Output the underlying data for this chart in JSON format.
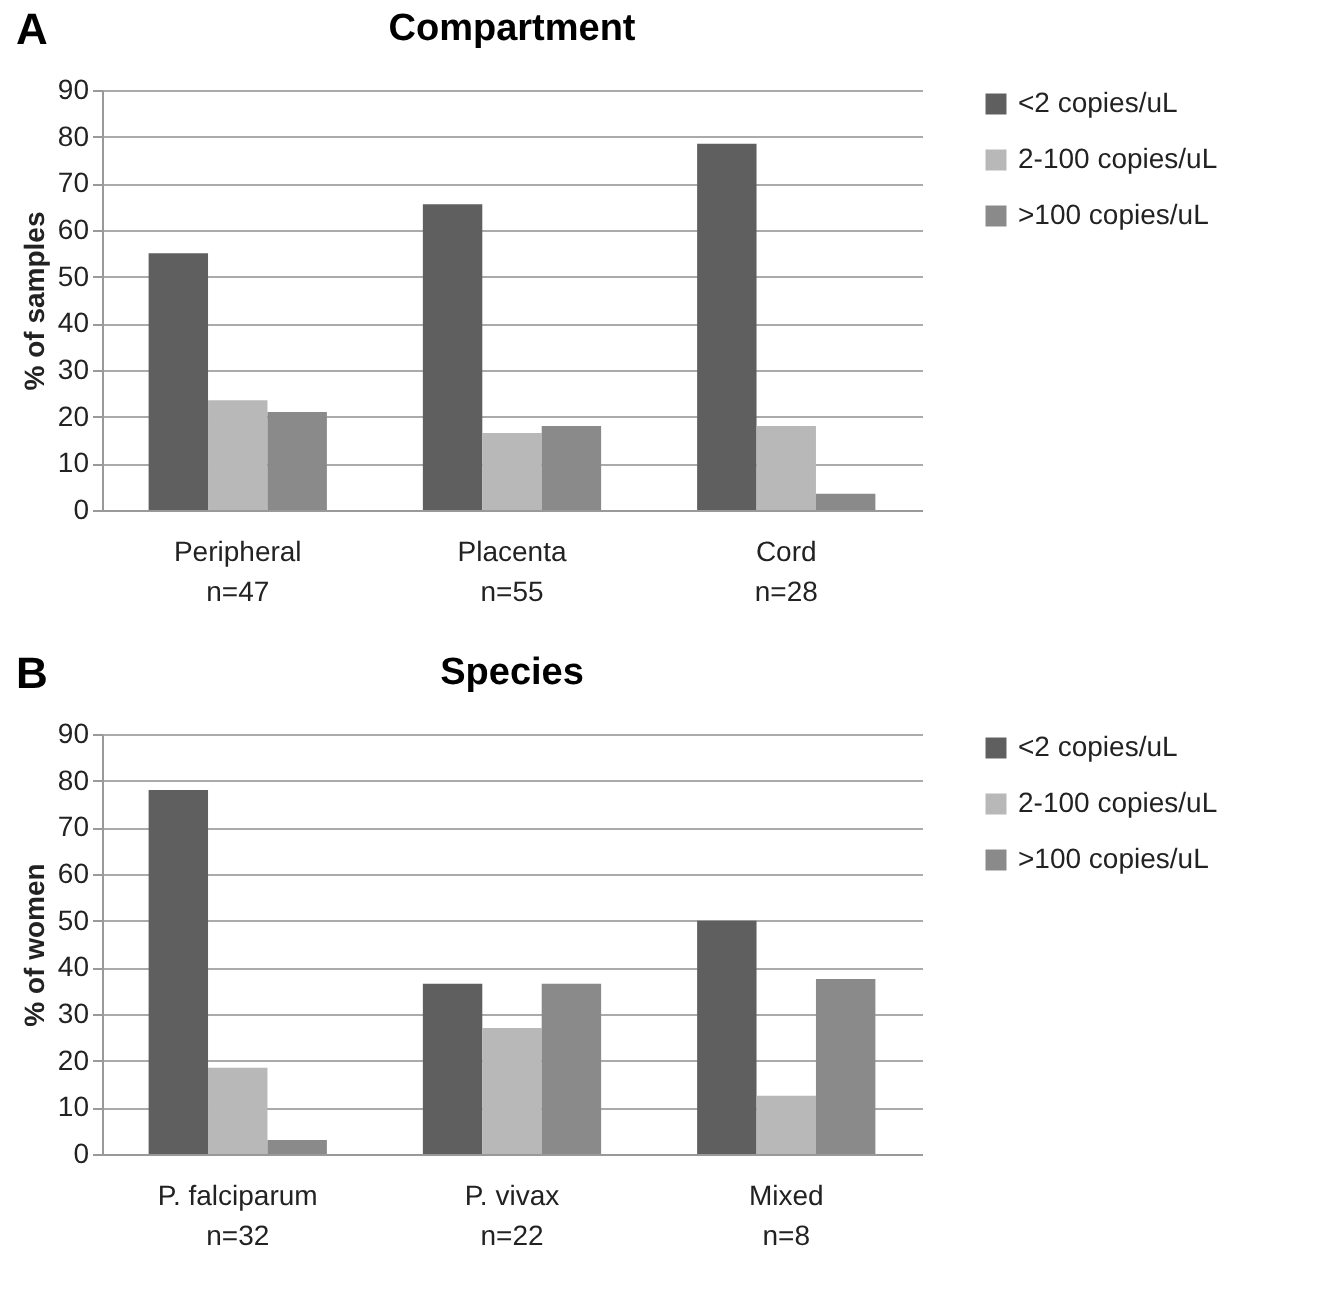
{
  "chart_data": [
    {
      "type": "bar",
      "title": "Compartment",
      "ylabel": "% of samples",
      "annotations": [
        "A"
      ],
      "categories": [
        "Peripheral\nn=47",
        "Placenta\nn=55",
        "Cord\nn=28"
      ],
      "series": [
        {
          "name": "<2 copies/uL",
          "color": "#5f5f5f",
          "values": [
            55,
            65.5,
            78.5
          ]
        },
        {
          "name": "2-100 copies/uL",
          "color": "#b8b8b8",
          "values": [
            23.5,
            16.5,
            18
          ]
        },
        {
          "name": ">100 copies/uL",
          "color": "#8a8a8a",
          "values": [
            21,
            18,
            3.5
          ]
        }
      ],
      "ylim": [
        0,
        90
      ],
      "yticks": [
        0,
        10,
        20,
        30,
        40,
        50,
        60,
        70,
        80,
        90
      ],
      "grid": "y",
      "legend": "right"
    },
    {
      "type": "bar",
      "title": "Species",
      "ylabel": "% of women",
      "annotations": [
        "B"
      ],
      "categories": [
        "P. falciparum\nn=32",
        "P. vivax\nn=22",
        "Mixed\nn=8"
      ],
      "series": [
        {
          "name": "<2 copies/uL",
          "color": "#5f5f5f",
          "values": [
            78,
            36.5,
            50
          ]
        },
        {
          "name": "2-100 copies/uL",
          "color": "#b8b8b8",
          "values": [
            18.5,
            27,
            12.5
          ]
        },
        {
          "name": ">100 copies/uL",
          "color": "#8a8a8a",
          "values": [
            3,
            36.5,
            37.5
          ]
        }
      ],
      "ylim": [
        0,
        90
      ],
      "yticks": [
        0,
        10,
        20,
        30,
        40,
        50,
        60,
        70,
        80,
        90
      ],
      "grid": "y",
      "legend": "right"
    }
  ]
}
